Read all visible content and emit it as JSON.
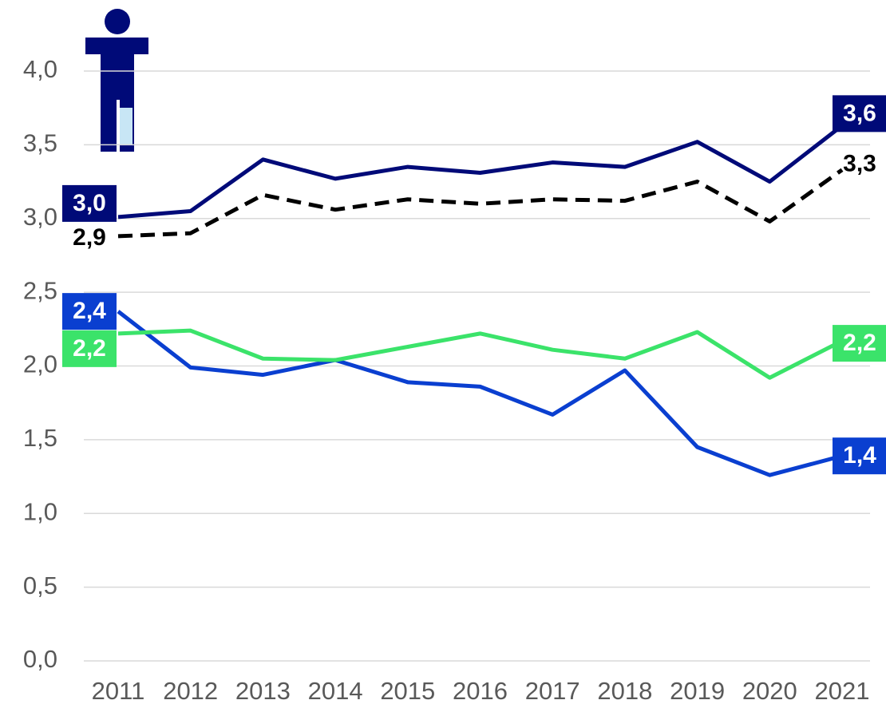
{
  "chart_data": {
    "type": "line",
    "categories": [
      "2011",
      "2012",
      "2013",
      "2014",
      "2015",
      "2016",
      "2017",
      "2018",
      "2019",
      "2020",
      "2021"
    ],
    "series": [
      {
        "color": "#000a78",
        "dashed": false,
        "values": [
          3.01,
          3.05,
          3.4,
          3.27,
          3.35,
          3.31,
          3.38,
          3.35,
          3.52,
          3.25,
          3.63
        ],
        "value_labels": [
          "3,0",
          null,
          null,
          null,
          null,
          null,
          null,
          null,
          null,
          null,
          "3,6"
        ]
      },
      {
        "color": "#000000",
        "dashed": true,
        "values": [
          2.88,
          2.9,
          3.16,
          3.06,
          3.13,
          3.1,
          3.13,
          3.12,
          3.25,
          2.98,
          3.33
        ],
        "value_labels": [
          "2,9",
          null,
          null,
          null,
          null,
          null,
          null,
          null,
          null,
          null,
          "3,3"
        ]
      },
      {
        "color": "#0a3fd0",
        "dashed": false,
        "values": [
          2.37,
          1.99,
          1.94,
          2.04,
          1.89,
          1.86,
          1.67,
          1.97,
          1.45,
          1.26,
          1.39
        ],
        "value_labels": [
          "2,4",
          null,
          null,
          null,
          null,
          null,
          null,
          null,
          null,
          null,
          "1,4"
        ]
      },
      {
        "color": "#3be36a",
        "dashed": false,
        "values": [
          2.22,
          2.24,
          2.05,
          2.04,
          2.13,
          2.22,
          2.11,
          2.05,
          2.23,
          1.92,
          2.17
        ],
        "value_labels": [
          "2,2",
          null,
          null,
          null,
          null,
          null,
          null,
          null,
          null,
          null,
          "2,2"
        ]
      }
    ],
    "ylim": [
      0,
      4
    ],
    "yticks": [
      {
        "value": 0,
        "label": "0,0"
      },
      {
        "value": 0.5,
        "label": "0,5"
      },
      {
        "value": 1,
        "label": "1,0"
      },
      {
        "value": 1.5,
        "label": "1,5"
      },
      {
        "value": 2,
        "label": "2,0"
      },
      {
        "value": 2.5,
        "label": "2,5"
      },
      {
        "value": 3,
        "label": "3,0"
      },
      {
        "value": 3.5,
        "label": "3,5"
      },
      {
        "value": 4,
        "label": "4,0"
      }
    ],
    "grid": true
  }
}
